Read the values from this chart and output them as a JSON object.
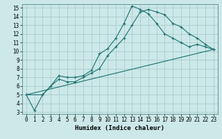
{
  "title": "",
  "xlabel": "Humidex (Indice chaleur)",
  "xlim_min": -0.5,
  "xlim_max": 23.5,
  "ylim_min": 2.8,
  "ylim_max": 15.4,
  "xticks": [
    0,
    1,
    2,
    3,
    4,
    5,
    6,
    7,
    8,
    9,
    10,
    11,
    12,
    13,
    14,
    15,
    16,
    17,
    18,
    19,
    20,
    21,
    22,
    23
  ],
  "yticks": [
    3,
    4,
    5,
    6,
    7,
    8,
    9,
    10,
    11,
    12,
    13,
    14,
    15
  ],
  "bg_color": "#cce8e8",
  "grid_color": "#aacccc",
  "line_color": "#1a7070",
  "line1_x": [
    0,
    1,
    2,
    3,
    4,
    5,
    6,
    7,
    8,
    9,
    10,
    11,
    12,
    13,
    14,
    15,
    16,
    17,
    18,
    19,
    20,
    21,
    22,
    23
  ],
  "line1_y": [
    5.0,
    3.2,
    5.0,
    6.0,
    7.2,
    7.0,
    7.0,
    7.2,
    7.8,
    9.7,
    10.3,
    11.5,
    13.2,
    15.2,
    14.8,
    14.3,
    13.2,
    12.0,
    11.5,
    11.0,
    10.5,
    10.8,
    10.5,
    10.2
  ],
  "line2_x": [
    0,
    2,
    3,
    4,
    5,
    6,
    7,
    8,
    9,
    10,
    11,
    12,
    13,
    14,
    15,
    16,
    17,
    18,
    19,
    20,
    21,
    22,
    23
  ],
  "line2_y": [
    5.0,
    5.0,
    6.0,
    6.8,
    6.5,
    6.5,
    7.0,
    7.5,
    8.0,
    9.5,
    10.5,
    11.5,
    13.0,
    14.5,
    14.8,
    14.5,
    14.2,
    13.2,
    12.8,
    12.0,
    11.5,
    10.8,
    10.2
  ],
  "line3_x": [
    0,
    23
  ],
  "line3_y": [
    5.0,
    10.2
  ],
  "tick_fontsize": 5.5,
  "xlabel_fontsize": 6.5
}
